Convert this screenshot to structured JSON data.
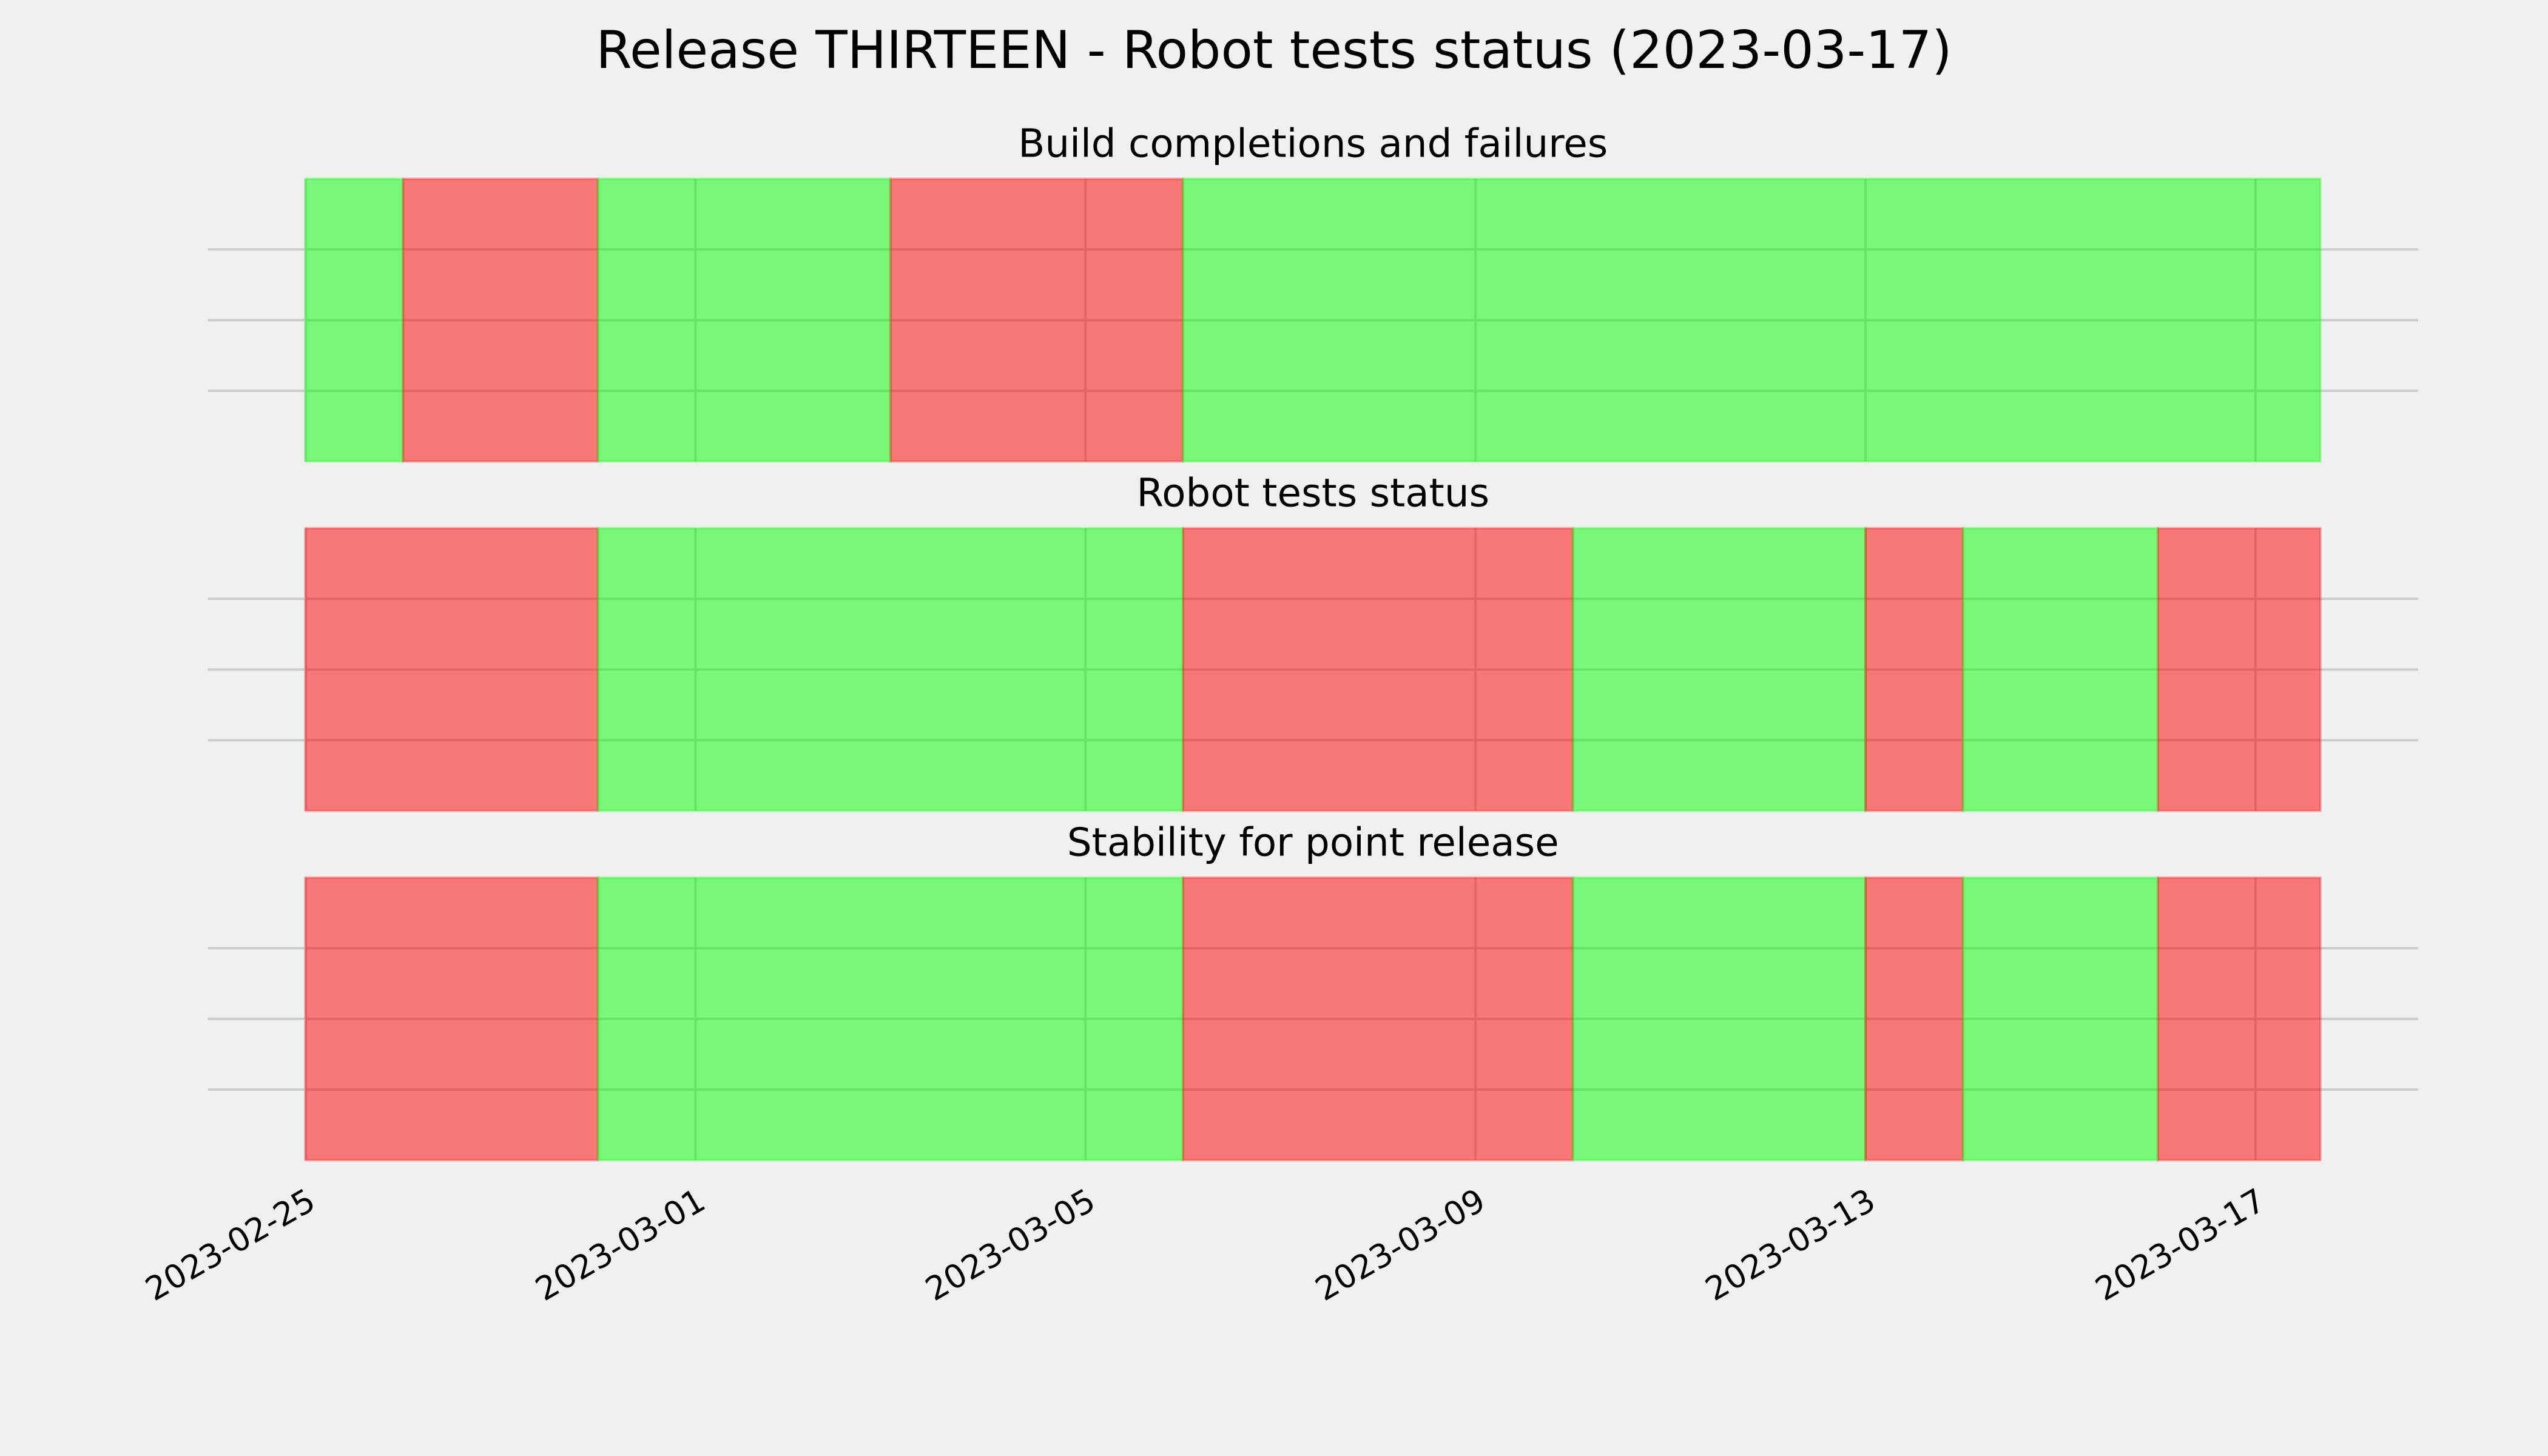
{
  "title": "Release THIRTEEN - Robot tests status (2023-03-17)",
  "chart_data": [
    {
      "type": "span",
      "title": "Build completions and failures",
      "xlim": [
        "2023-02-24",
        "2023-03-18T16:00:00Z"
      ],
      "xticks": [
        "2023-02-25",
        "2023-03-01",
        "2023-03-05",
        "2023-03-09",
        "2023-03-13",
        "2023-03-17"
      ],
      "ylim": [
        0,
        1
      ],
      "yticks": [
        0.25,
        0.5,
        0.75
      ],
      "grid": true,
      "alpha": 0.5,
      "spans": [
        {
          "start": "2023-02-25",
          "end": "2023-02-26",
          "color": "#00ff00"
        },
        {
          "start": "2023-02-26",
          "end": "2023-02-28",
          "color": "#ff0000"
        },
        {
          "start": "2023-02-28",
          "end": "2023-03-03",
          "color": "#00ff00"
        },
        {
          "start": "2023-03-03",
          "end": "2023-03-06",
          "color": "#ff0000"
        },
        {
          "start": "2023-03-06",
          "end": "2023-03-17T16:00:00Z",
          "color": "#00ff00"
        }
      ]
    },
    {
      "type": "span",
      "title": "Robot tests status",
      "xlim": [
        "2023-02-24",
        "2023-03-18T16:00:00Z"
      ],
      "xticks": [
        "2023-02-25",
        "2023-03-01",
        "2023-03-05",
        "2023-03-09",
        "2023-03-13",
        "2023-03-17"
      ],
      "ylim": [
        0,
        1
      ],
      "yticks": [
        0.25,
        0.5,
        0.75
      ],
      "grid": true,
      "alpha": 0.5,
      "spans": [
        {
          "start": "2023-02-25",
          "end": "2023-02-28",
          "color": "#ff0000"
        },
        {
          "start": "2023-02-28",
          "end": "2023-03-06",
          "color": "#00ff00"
        },
        {
          "start": "2023-03-06",
          "end": "2023-03-10",
          "color": "#ff0000"
        },
        {
          "start": "2023-03-10",
          "end": "2023-03-13",
          "color": "#00ff00"
        },
        {
          "start": "2023-03-13",
          "end": "2023-03-14",
          "color": "#ff0000"
        },
        {
          "start": "2023-03-14",
          "end": "2023-03-16",
          "color": "#00ff00"
        },
        {
          "start": "2023-03-16",
          "end": "2023-03-17T16:00:00Z",
          "color": "#ff0000"
        }
      ]
    },
    {
      "type": "span",
      "title": "Stability for point release",
      "xlim": [
        "2023-02-24",
        "2023-03-18T16:00:00Z"
      ],
      "xticks": [
        "2023-02-25",
        "2023-03-01",
        "2023-03-05",
        "2023-03-09",
        "2023-03-13",
        "2023-03-17"
      ],
      "ylim": [
        0,
        1
      ],
      "yticks": [
        0.25,
        0.5,
        0.75
      ],
      "grid": true,
      "alpha": 0.5,
      "spans": [
        {
          "start": "2023-02-25",
          "end": "2023-02-28",
          "color": "#ff0000"
        },
        {
          "start": "2023-02-28",
          "end": "2023-03-06",
          "color": "#00ff00"
        },
        {
          "start": "2023-03-06",
          "end": "2023-03-10",
          "color": "#ff0000"
        },
        {
          "start": "2023-03-10",
          "end": "2023-03-13",
          "color": "#00ff00"
        },
        {
          "start": "2023-03-13",
          "end": "2023-03-14",
          "color": "#ff0000"
        },
        {
          "start": "2023-03-14",
          "end": "2023-03-16",
          "color": "#00ff00"
        },
        {
          "start": "2023-03-16",
          "end": "2023-03-17T16:00:00Z",
          "color": "#ff0000"
        }
      ]
    }
  ]
}
